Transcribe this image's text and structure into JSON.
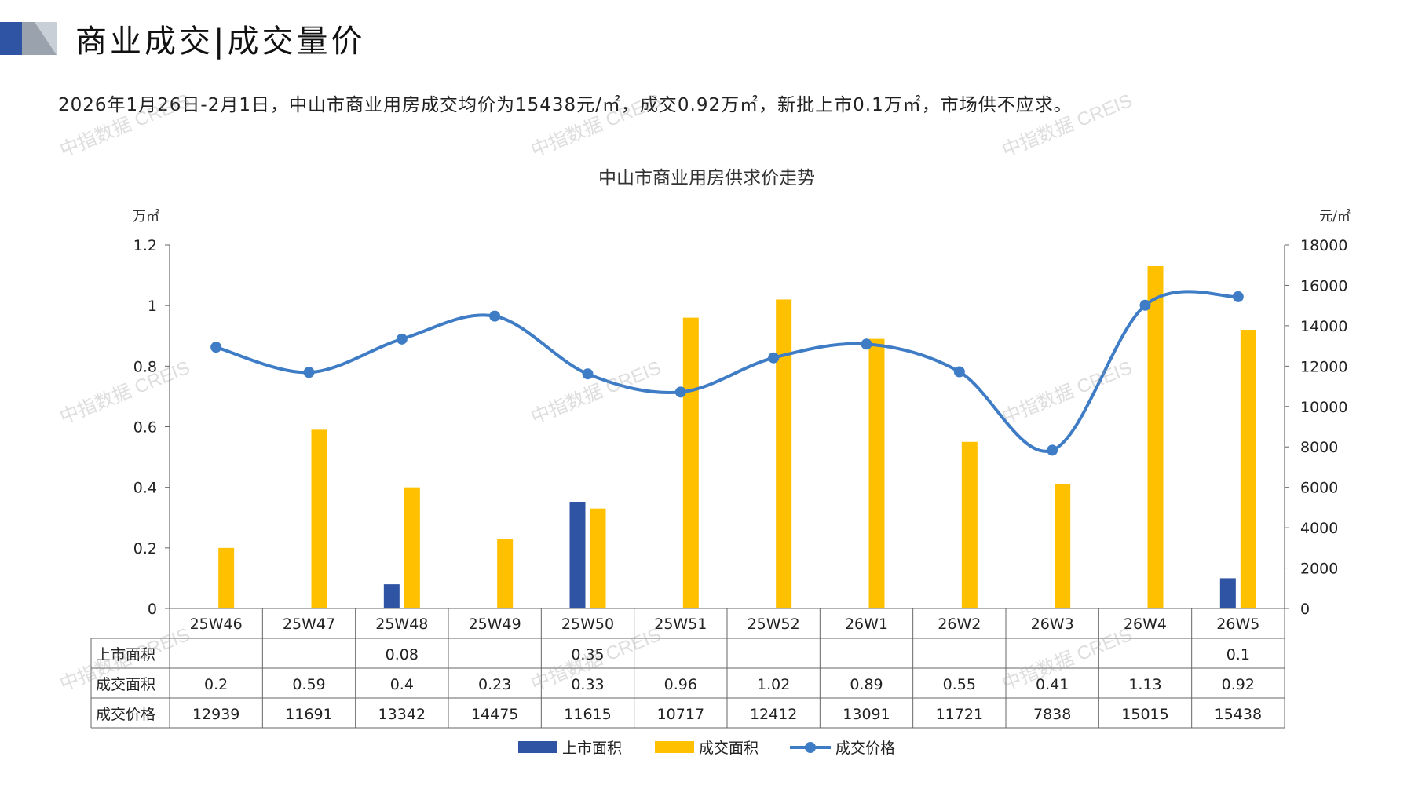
{
  "header": {
    "title": "商业成交|成交量价",
    "summary": "2026年1月26日-2月1日，中山市商业用房成交均价为15438元/㎡，成交0.92万㎡，新批上市0.1万㎡，市场供不应求。"
  },
  "watermark": "中指数据 CREIS",
  "colors": {
    "supply": "#2E54A3",
    "deal": "#FFC000",
    "price": "#3E7CC6"
  },
  "chart_data": {
    "type": "bar",
    "title": "中山市商业用房供求价走势",
    "ylabel": "万㎡",
    "y2label": "元/㎡",
    "ylim": [
      0,
      1.2
    ],
    "y2lim": [
      0,
      18000
    ],
    "yticks": [
      "1.2",
      "1",
      "0.8",
      "0.6",
      "0.4",
      "0.2",
      "0"
    ],
    "y2ticks": [
      "18000",
      "16000",
      "14000",
      "12000",
      "10000",
      "8000",
      "6000",
      "4000",
      "2000",
      "0"
    ],
    "categories": [
      "25W46",
      "25W47",
      "25W48",
      "25W49",
      "25W50",
      "25W51",
      "25W52",
      "26W1",
      "26W2",
      "26W3",
      "26W4",
      "26W5"
    ],
    "series": [
      {
        "name": "上市面积",
        "kind": "bar",
        "values": [
          null,
          null,
          0.08,
          null,
          0.35,
          null,
          null,
          null,
          null,
          null,
          null,
          0.1
        ],
        "labels": [
          "",
          "",
          "0.08",
          "",
          "0.35",
          "",
          "",
          "",
          "",
          "",
          "",
          "0.1"
        ]
      },
      {
        "name": "成交面积",
        "kind": "bar",
        "values": [
          0.2,
          0.59,
          0.4,
          0.23,
          0.33,
          0.96,
          1.02,
          0.89,
          0.55,
          0.41,
          1.13,
          0.92
        ],
        "labels": [
          "0.2",
          "0.59",
          "0.4",
          "0.23",
          "0.33",
          "0.96",
          "1.02",
          "0.89",
          "0.55",
          "0.41",
          "1.13",
          "0.92"
        ]
      },
      {
        "name": "成交价格",
        "kind": "line",
        "axis": "right",
        "values": [
          12939,
          11691,
          13342,
          14475,
          11615,
          10717,
          12412,
          13091,
          11721,
          7838,
          15015,
          15438
        ],
        "labels": [
          "12939",
          "11691",
          "13342",
          "14475",
          "11615",
          "10717",
          "12412",
          "13091",
          "11721",
          "7838",
          "15015",
          "15438"
        ]
      }
    ],
    "legend": "bottom-center"
  }
}
